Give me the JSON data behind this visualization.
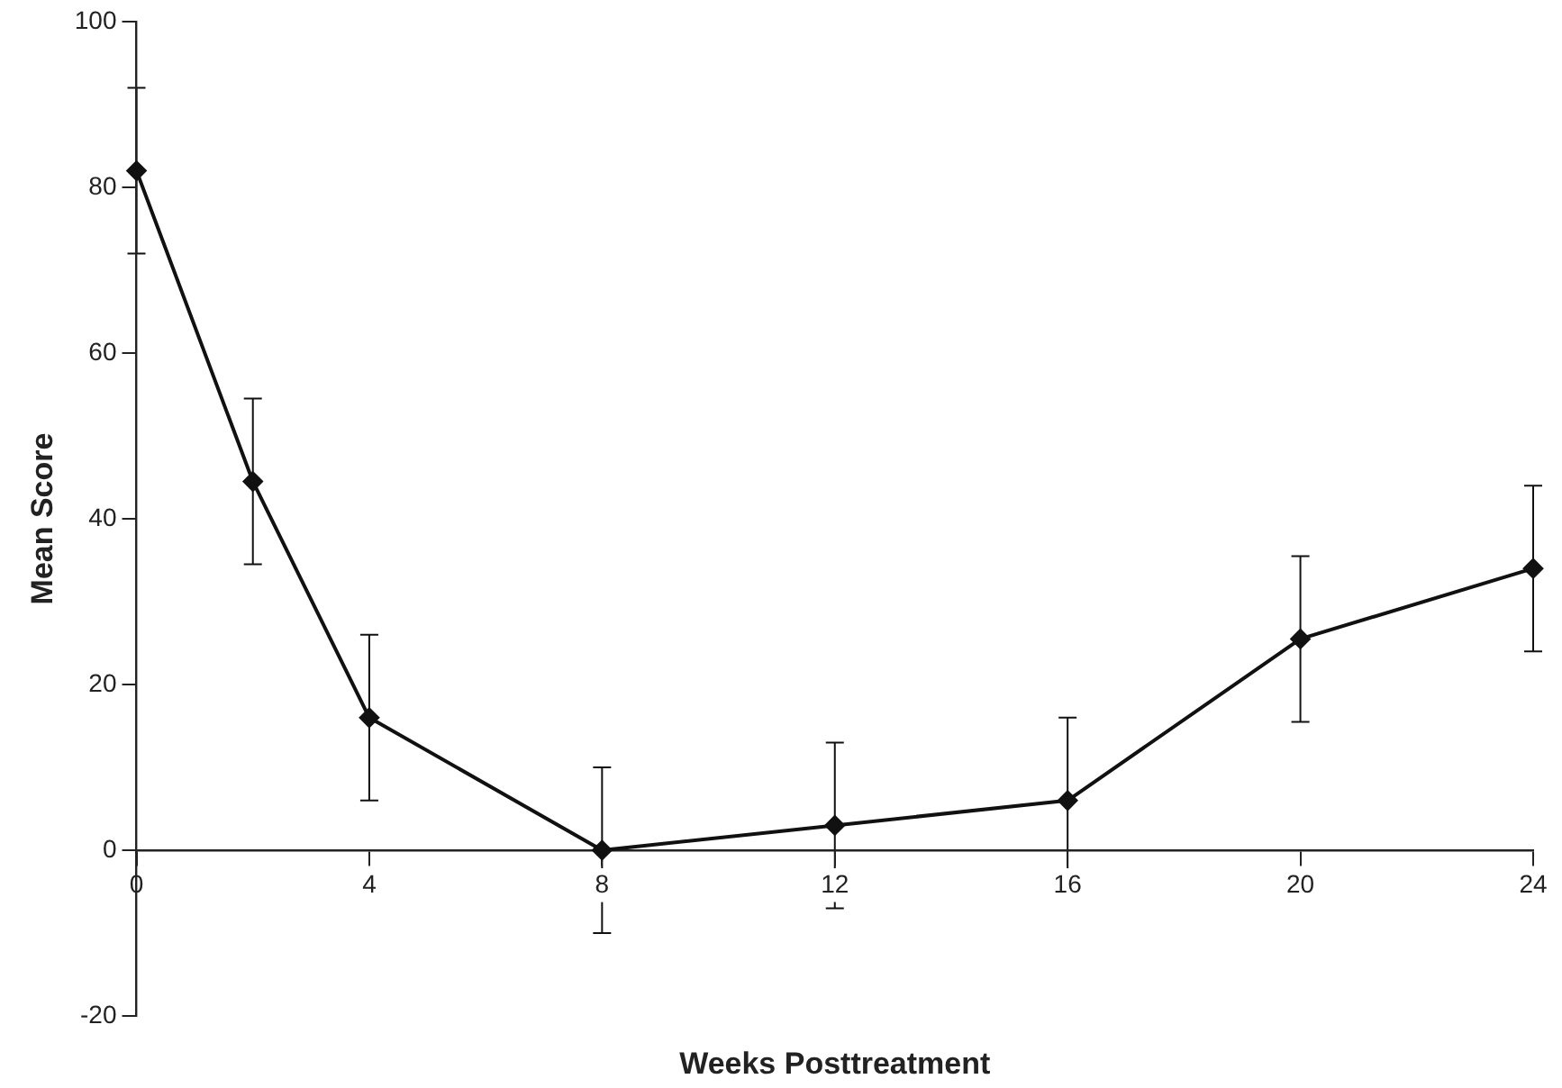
{
  "chart_data": {
    "type": "line",
    "xlabel": "Weeks Posttreatment",
    "ylabel": "Mean Score",
    "x": [
      0,
      2,
      4,
      8,
      12,
      16,
      20,
      24
    ],
    "series": [
      {
        "color": "#111111",
        "values": [
          82,
          44.5,
          16,
          0,
          3,
          6,
          25.5,
          34
        ],
        "errors": [
          10,
          10,
          10,
          10,
          10,
          10,
          10,
          10
        ]
      }
    ],
    "xlim": [
      0,
      24
    ],
    "xticks": [
      0,
      4,
      8,
      12,
      16,
      20,
      24
    ],
    "ylim": [
      -20,
      100
    ],
    "yticks": [
      -20,
      0,
      20,
      40,
      60,
      80,
      100
    ],
    "grid": false,
    "legend": false,
    "marker": "diamond",
    "line_style": "solid"
  }
}
